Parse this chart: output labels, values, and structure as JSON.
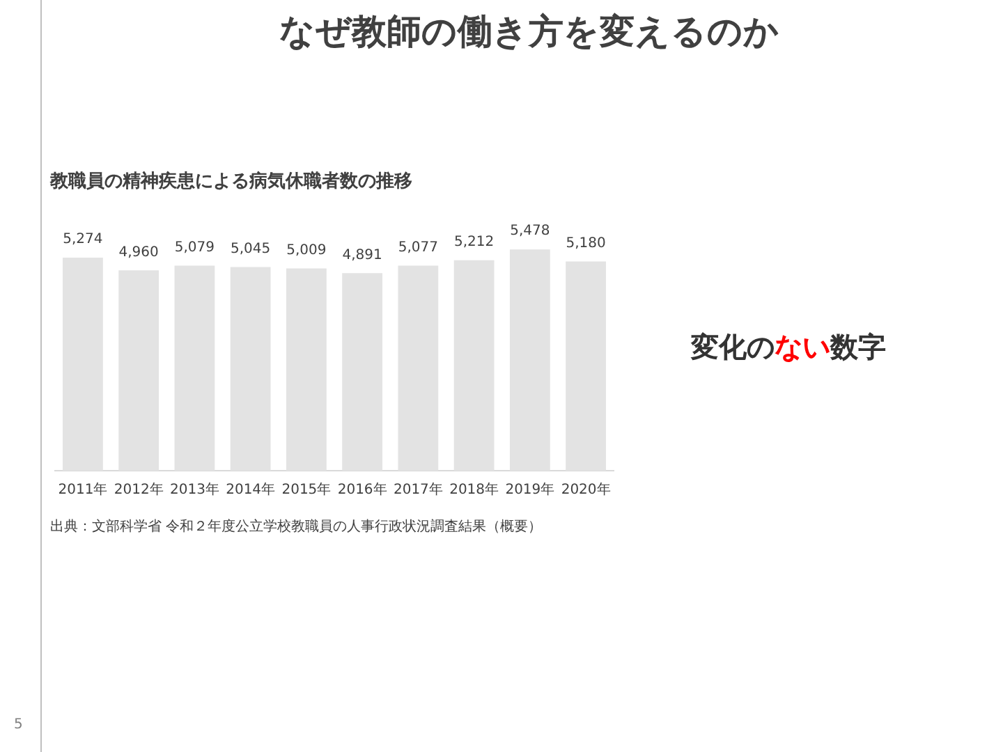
{
  "chart_data": {
    "type": "bar",
    "title": "なぜ教師の働き方を変えるのか",
    "subtitle": "教職員の精神疾患による病気休職者数の推移",
    "categories": [
      "2011年",
      "2012年",
      "2013年",
      "2014年",
      "2015年",
      "2016年",
      "2017年",
      "2018年",
      "2019年",
      "2020年"
    ],
    "values": [
      5274,
      4960,
      5079,
      5045,
      5009,
      4891,
      5077,
      5212,
      5478,
      5180
    ],
    "color": "#e3e3e3",
    "value_labels": [
      "5,274",
      "4,960",
      "5,079",
      "5,045",
      "5,009",
      "4,891",
      "5,077",
      "5,212",
      "5,478",
      "5,180"
    ],
    "grid": false,
    "legend": false,
    "tick_labels": "x",
    "annotations": [
      "出典：文部科学省 令和２年度公立学校教職員の人事行政状況調査結果（概要）",
      "変化の",
      "ない",
      "数字",
      "5"
    ]
  }
}
